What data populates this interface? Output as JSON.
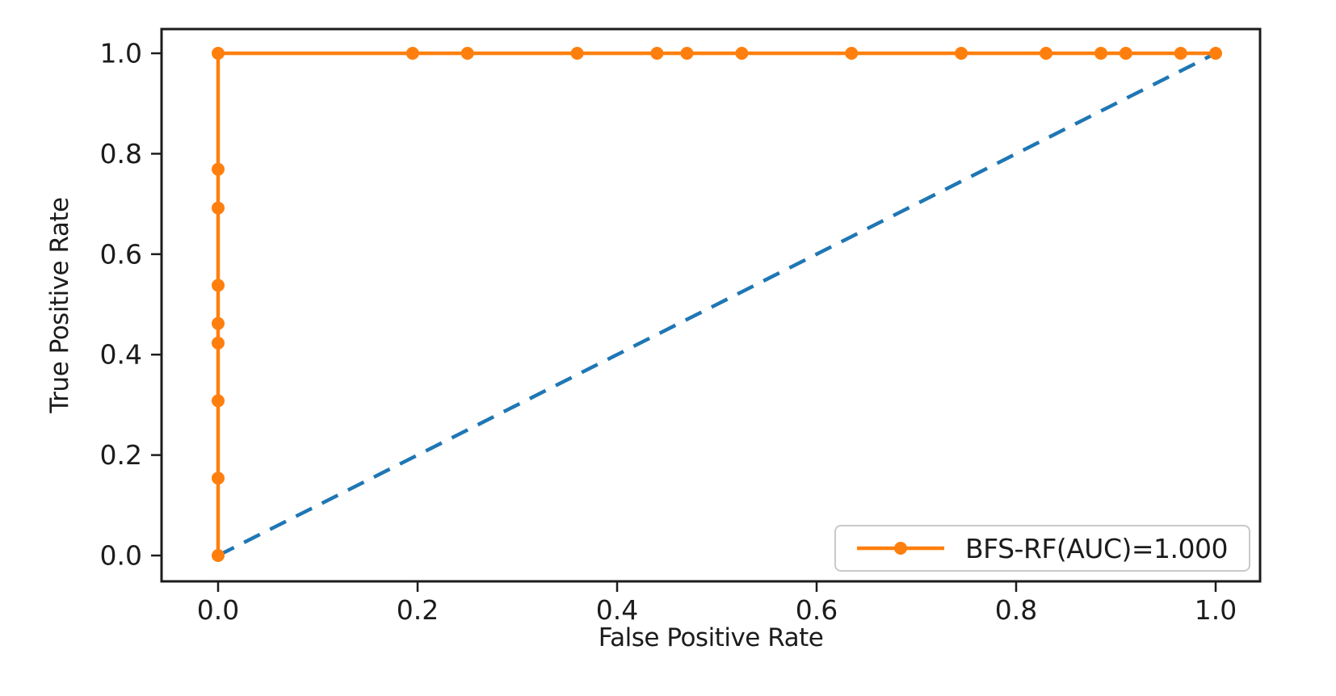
{
  "figure": {
    "background": "#ffffff",
    "axis_color": "#1c1c1c"
  },
  "chart_data": {
    "type": "line",
    "subtype": "roc-curve",
    "title": "",
    "xlabel": "False Positive Rate",
    "ylabel": "True Positive Rate",
    "xlim": [
      0.0,
      1.0
    ],
    "ylim": [
      0.0,
      1.0
    ],
    "xticks": [
      0.0,
      0.2,
      0.4,
      0.6,
      0.8,
      1.0
    ],
    "yticks": [
      0.0,
      0.2,
      0.4,
      0.6,
      0.8,
      1.0
    ],
    "grid": false,
    "legend_position": "lower right",
    "series": [
      {
        "name": "BFS-RF(AUC)=1.000",
        "role": "roc-curve",
        "color": "#ff7f0e",
        "line_style": "solid",
        "marker": "circle",
        "points": [
          [
            0.0,
            0.0
          ],
          [
            0.0,
            0.154
          ],
          [
            0.0,
            0.308
          ],
          [
            0.0,
            0.423
          ],
          [
            0.0,
            0.462
          ],
          [
            0.0,
            0.538
          ],
          [
            0.0,
            0.692
          ],
          [
            0.0,
            0.769
          ],
          [
            0.0,
            1.0
          ],
          [
            0.195,
            1.0
          ],
          [
            0.25,
            1.0
          ],
          [
            0.36,
            1.0
          ],
          [
            0.44,
            1.0
          ],
          [
            0.47,
            1.0
          ],
          [
            0.525,
            1.0
          ],
          [
            0.635,
            1.0
          ],
          [
            0.745,
            1.0
          ],
          [
            0.83,
            1.0
          ],
          [
            0.885,
            1.0
          ],
          [
            0.91,
            1.0
          ],
          [
            0.965,
            1.0
          ],
          [
            1.0,
            1.0
          ]
        ]
      },
      {
        "name": "chance-diagonal",
        "role": "reference-line",
        "color": "#1f77b4",
        "line_style": "dashed",
        "marker": "none",
        "points": [
          [
            0.0,
            0.0
          ],
          [
            1.0,
            1.0
          ]
        ]
      }
    ]
  }
}
